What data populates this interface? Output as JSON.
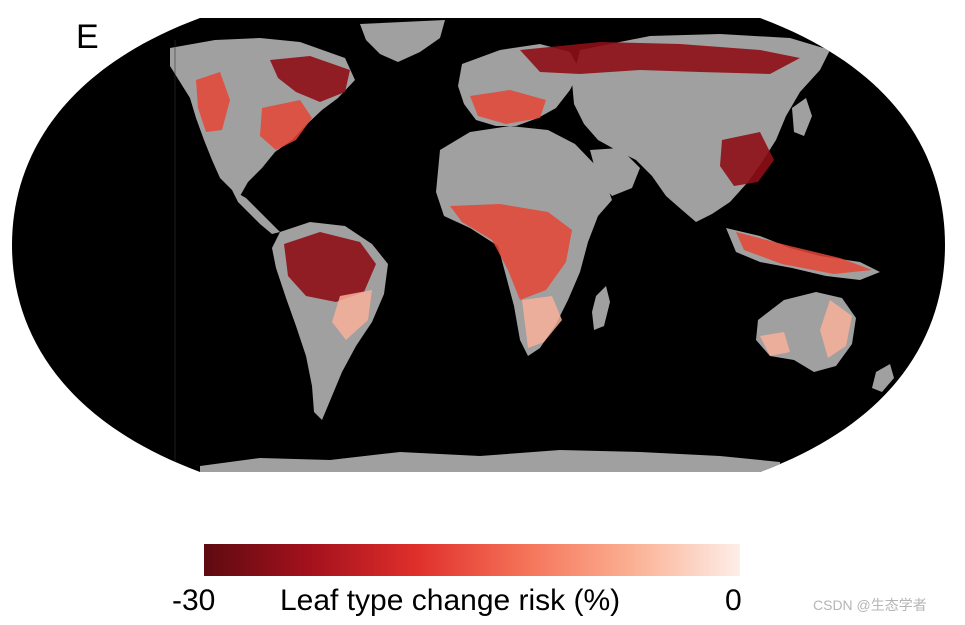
{
  "panel_label": "E",
  "colorbar": {
    "title": "Leaf type change risk (%)",
    "min_label": "-30",
    "max_label": "0",
    "colors": [
      "#5e0a10",
      "#a5111d",
      "#e0302c",
      "#f57358",
      "#fbb093",
      "#fdeee8"
    ]
  },
  "map_colors": {
    "ocean": "#000000",
    "land_no_data": "#a0a0a0",
    "high_risk": "#8e0e15",
    "mid_risk": "#e54534",
    "low_risk": "#f7b09a"
  },
  "watermark": "CSDN @生态学者"
}
